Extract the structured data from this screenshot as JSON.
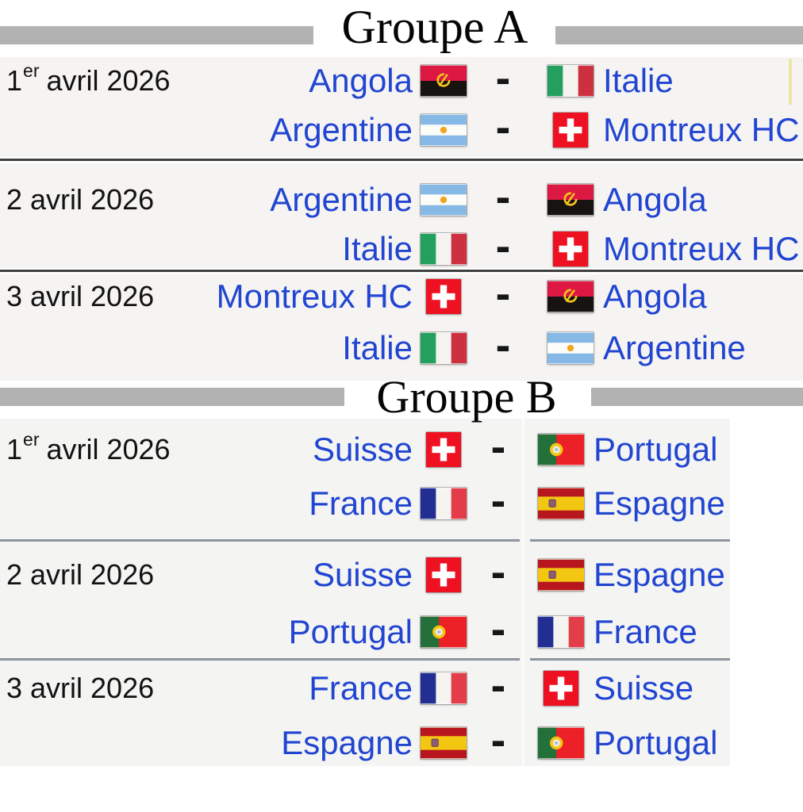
{
  "colors": {
    "link-blue": "#2145d1",
    "date-text": "#121212",
    "title-text": "#050505",
    "header-bar": "#b2b2b2",
    "row-bg-a": "#f6f4f2",
    "row-bg-b": "#f4f4f3",
    "divider-a": "#3f3f3f",
    "divider-b": "#8c949e",
    "dash": "#161616",
    "artifact-yellow": "#ebe6a2"
  },
  "separator": "-",
  "groups": [
    {
      "title": "Groupe A",
      "slug": "groupe-a",
      "rows": [
        {
          "date": {
            "day": "1",
            "sup": "er",
            "rest": "avril 2026"
          },
          "matches": [
            {
              "home": "Angola",
              "home_flag": "angola",
              "away": "Italie",
              "away_flag": "italy"
            },
            {
              "home": "Argentine",
              "home_flag": "argentina",
              "away": "Montreux HC",
              "away_flag": "switzerland"
            }
          ]
        },
        {
          "date": {
            "day": "2",
            "sup": "",
            "rest": "avril 2026"
          },
          "matches": [
            {
              "home": "Argentine",
              "home_flag": "argentina",
              "away": "Angola",
              "away_flag": "angola"
            },
            {
              "home": "Italie",
              "home_flag": "italy",
              "away": "Montreux HC",
              "away_flag": "switzerland"
            }
          ]
        },
        {
          "date": {
            "day": "3",
            "sup": "",
            "rest": "avril 2026"
          },
          "matches": [
            {
              "home": "Montreux HC",
              "home_flag": "switzerland",
              "away": "Angola",
              "away_flag": "angola"
            },
            {
              "home": "Italie",
              "home_flag": "italy",
              "away": "Argentine",
              "away_flag": "argentina"
            }
          ]
        }
      ]
    },
    {
      "title": "Groupe B",
      "slug": "groupe-b",
      "rows": [
        {
          "date": {
            "day": "1",
            "sup": "er",
            "rest": "avril 2026"
          },
          "matches": [
            {
              "home": "Suisse",
              "home_flag": "switzerland",
              "away": "Portugal",
              "away_flag": "portugal"
            },
            {
              "home": "France",
              "home_flag": "france",
              "away": "Espagne",
              "away_flag": "spain"
            }
          ]
        },
        {
          "date": {
            "day": "2",
            "sup": "",
            "rest": "avril 2026"
          },
          "matches": [
            {
              "home": "Suisse",
              "home_flag": "switzerland",
              "away": "Espagne",
              "away_flag": "spain"
            },
            {
              "home": "Portugal",
              "home_flag": "portugal",
              "away": "France",
              "away_flag": "france"
            }
          ]
        },
        {
          "date": {
            "day": "3",
            "sup": "",
            "rest": "avril 2026"
          },
          "matches": [
            {
              "home": "France",
              "home_flag": "france",
              "away": "Suisse",
              "away_flag": "switzerland"
            },
            {
              "home": "Espagne",
              "home_flag": "spain",
              "away": "Portugal",
              "away_flag": "portugal"
            }
          ]
        }
      ]
    }
  ]
}
